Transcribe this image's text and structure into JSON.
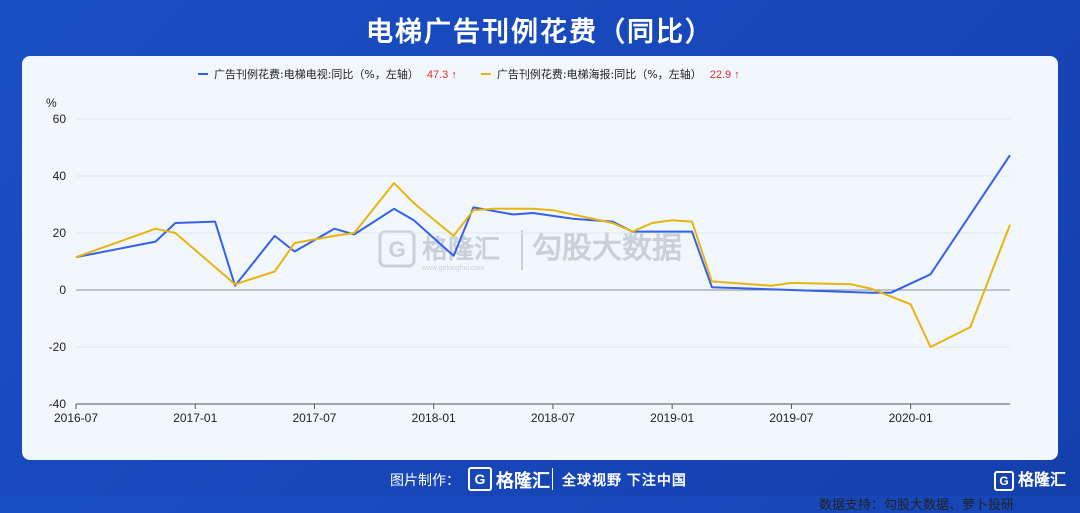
{
  "title": "电梯广告刊例花费（同比）",
  "source": "数据支持：勾股大数据、萝卜投研",
  "watermark": {
    "brand": "格隆汇",
    "sub": "www.gelonghui.com",
    "partner": "勾股大数据"
  },
  "footer": {
    "made_by": "图片制作：",
    "brand": "格隆汇",
    "slogan": "全球视野 下注中国"
  },
  "corner_brand": "格隆汇",
  "colors": {
    "tv": "#3461ec",
    "poster": "#e8b50e",
    "up_arrow": "#e0312f"
  },
  "chart_data": {
    "type": "line",
    "ylabel": "%",
    "ylim": [
      -40,
      60
    ],
    "yticks": [
      -40,
      -20,
      0,
      20,
      40,
      60
    ],
    "x_tick_labels": [
      "2016-07",
      "2017-01",
      "2017-07",
      "2018-01",
      "2018-07",
      "2019-01",
      "2019-07",
      "2020-01"
    ],
    "x_tick_positions": [
      0,
      6,
      12,
      18,
      24,
      30,
      36,
      42
    ],
    "x_range": [
      0,
      47
    ],
    "legend_position": "top",
    "series": [
      {
        "name": "广告刊例花费:电梯电视:同比（%，左轴）",
        "last_value": "47.3",
        "arrow": "↑",
        "color_key": "tv",
        "points": [
          [
            0,
            11.5
          ],
          [
            4,
            17
          ],
          [
            5,
            23.5
          ],
          [
            7,
            24
          ],
          [
            8,
            1.5
          ],
          [
            10,
            19
          ],
          [
            11,
            13.5
          ],
          [
            13,
            21.5
          ],
          [
            14,
            19.5
          ],
          [
            16,
            28.5
          ],
          [
            17,
            24.5
          ],
          [
            19,
            12
          ],
          [
            20,
            29
          ],
          [
            22,
            26.5
          ],
          [
            23,
            27
          ],
          [
            25,
            25
          ],
          [
            27,
            24
          ],
          [
            28,
            20.5
          ],
          [
            31,
            20.5
          ],
          [
            32,
            1
          ],
          [
            36,
            0
          ],
          [
            40,
            -1
          ],
          [
            41,
            -1
          ],
          [
            43,
            5.5
          ],
          [
            47,
            47.3
          ]
        ]
      },
      {
        "name": "广告刊例花费:电梯海报:同比（%，左轴）",
        "last_value": "22.9",
        "arrow": "↑",
        "color_key": "poster",
        "points": [
          [
            0,
            11.5
          ],
          [
            4,
            21.5
          ],
          [
            5,
            20
          ],
          [
            8,
            2
          ],
          [
            10,
            6.5
          ],
          [
            11,
            16.5
          ],
          [
            13,
            19
          ],
          [
            14,
            20
          ],
          [
            16,
            37.5
          ],
          [
            17,
            30.5
          ],
          [
            19,
            19
          ],
          [
            20,
            28
          ],
          [
            21,
            28.5
          ],
          [
            23,
            28.5
          ],
          [
            24,
            28
          ],
          [
            27,
            23.5
          ],
          [
            28,
            20.5
          ],
          [
            29,
            23.5
          ],
          [
            30,
            24.5
          ],
          [
            31,
            24
          ],
          [
            32,
            3
          ],
          [
            35,
            1.5
          ],
          [
            36,
            2.5
          ],
          [
            39,
            2
          ],
          [
            40,
            0.5
          ],
          [
            42,
            -5
          ],
          [
            43,
            -20
          ],
          [
            45,
            -13
          ],
          [
            47,
            22.9
          ]
        ]
      }
    ]
  }
}
